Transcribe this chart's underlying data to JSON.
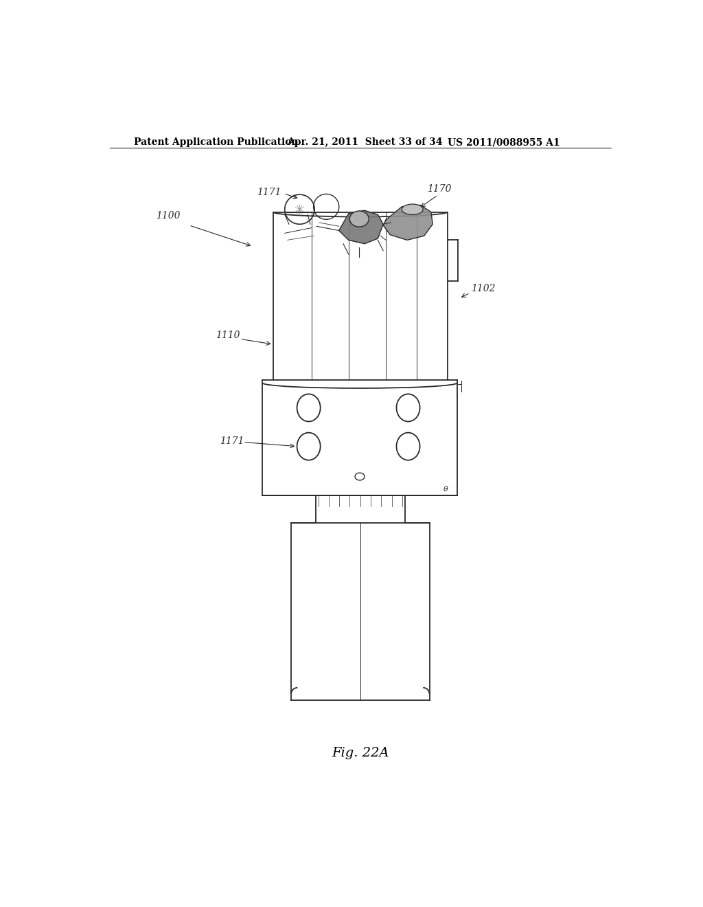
{
  "title_left": "Patent Application Publication",
  "title_mid": "Apr. 21, 2011  Sheet 33 of 34",
  "title_right": "US 2011/0088955 A1",
  "fig_label": "Fig. 22A",
  "bg_color": "#ffffff",
  "line_color": "#2a2a2a",
  "lw_main": 1.3,
  "lw_thin": 0.7,
  "lw_detail": 0.5
}
